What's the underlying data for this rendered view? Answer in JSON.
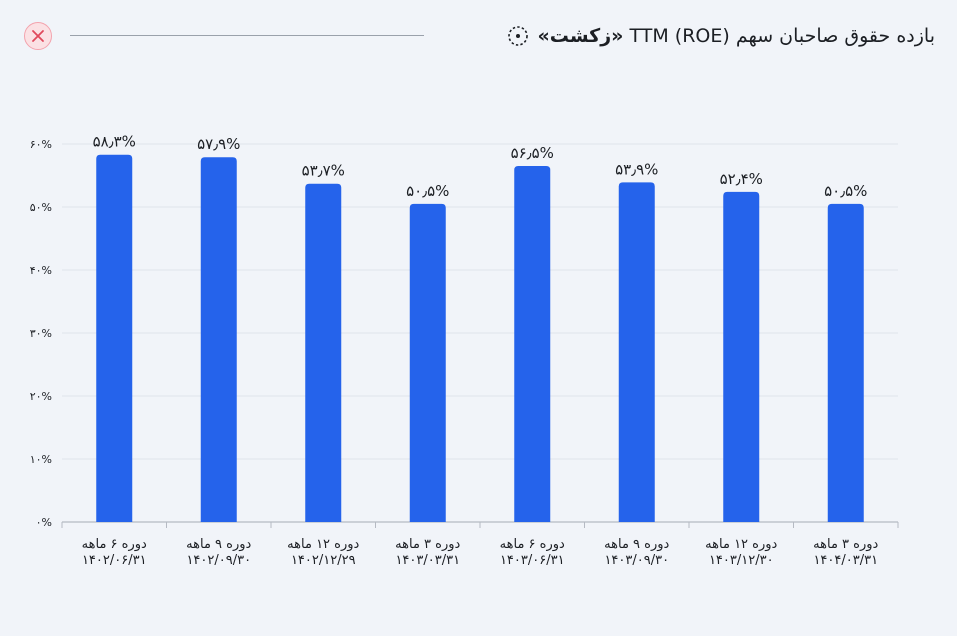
{
  "header": {
    "title_plain": "بازده حقوق صاحبان سهم TTM (ROE) ",
    "title_bold": "«زکشت»",
    "icon": "dotted-circle-icon",
    "close_icon": "close-icon"
  },
  "colors": {
    "bar": "#2563eb",
    "grid": "#dfe3ea",
    "axis": "#b5bac3",
    "text": "#1c1f24",
    "close_bg": "#fbe1e4",
    "close_x": "#e0485c"
  },
  "chart_data": {
    "type": "bar",
    "ylim": [
      0,
      60
    ],
    "grid": true,
    "y_ticks": [
      "۰%",
      "۱۰%",
      "۲۰%",
      "۳۰%",
      "۴۰%",
      "۵۰%",
      "۶۰%"
    ],
    "y_tick_values": [
      0,
      10,
      20,
      30,
      40,
      50,
      60
    ],
    "categories": [
      [
        "دوره ۶ ماهه",
        "۱۴۰۲/۰۶/۳۱"
      ],
      [
        "دوره ۹ ماهه",
        "۱۴۰۲/۰۹/۳۰"
      ],
      [
        "دوره ۱۲ ماهه",
        "۱۴۰۲/۱۲/۲۹"
      ],
      [
        "دوره ۳ ماهه",
        "۱۴۰۳/۰۳/۳۱"
      ],
      [
        "دوره ۶ ماهه",
        "۱۴۰۳/۰۶/۳۱"
      ],
      [
        "دوره ۹ ماهه",
        "۱۴۰۳/۰۹/۳۰"
      ],
      [
        "دوره ۱۲ ماهه",
        "۱۴۰۳/۱۲/۳۰"
      ],
      [
        "دوره ۳ ماهه",
        "۱۴۰۴/۰۳/۳۱"
      ]
    ],
    "values": [
      58.3,
      57.9,
      53.7,
      50.5,
      56.5,
      53.9,
      52.4,
      50.5
    ],
    "value_labels": [
      "۵۸٫۳%",
      "۵۷٫۹%",
      "۵۳٫۷%",
      "۵۰٫۵%",
      "۵۶٫۵%",
      "۵۳٫۹%",
      "۵۲٫۴%",
      "۵۰٫۵%"
    ]
  }
}
